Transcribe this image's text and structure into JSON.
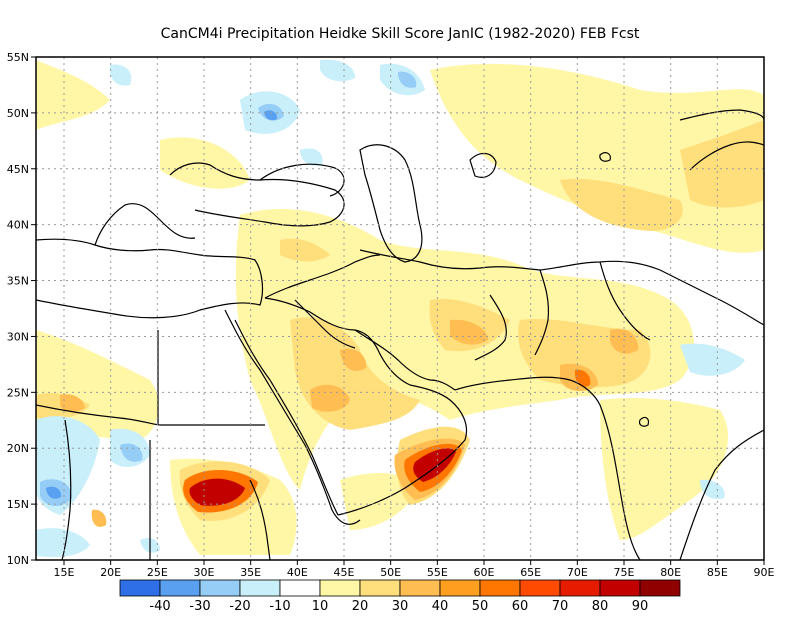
{
  "title": "CanCM4i  Precipitation Heidke Skill Score JanIC (1982-2020) FEB Fcst",
  "map": {
    "lon_range": [
      12,
      90
    ],
    "lat_range": [
      10,
      55
    ],
    "x_ticks": [
      "15E",
      "20E",
      "25E",
      "30E",
      "35E",
      "40E",
      "45E",
      "50E",
      "55E",
      "60E",
      "65E",
      "70E",
      "75E",
      "80E",
      "85E",
      "90E"
    ],
    "x_tick_values": [
      15,
      20,
      25,
      30,
      35,
      40,
      45,
      50,
      55,
      60,
      65,
      70,
      75,
      80,
      85,
      90
    ],
    "y_ticks": [
      "10N",
      "15N",
      "20N",
      "25N",
      "30N",
      "35N",
      "40N",
      "45N",
      "50N",
      "55N"
    ],
    "y_tick_values": [
      10,
      15,
      20,
      25,
      30,
      35,
      40,
      45,
      50,
      55
    ],
    "grid": true
  },
  "colorbar": {
    "colors": [
      "#2e6fe8",
      "#5aa0f0",
      "#96cdf6",
      "#c8effa",
      "#ffffff",
      "#fff6a6",
      "#ffde7c",
      "#ffbd52",
      "#ff9f1f",
      "#ff7700",
      "#ff4a00",
      "#e61c00",
      "#c30000",
      "#900000"
    ],
    "labels": [
      "-40",
      "-30",
      "-20",
      "-10",
      "10",
      "20",
      "30",
      "40",
      "50",
      "60",
      "70",
      "80",
      "90"
    ]
  }
}
